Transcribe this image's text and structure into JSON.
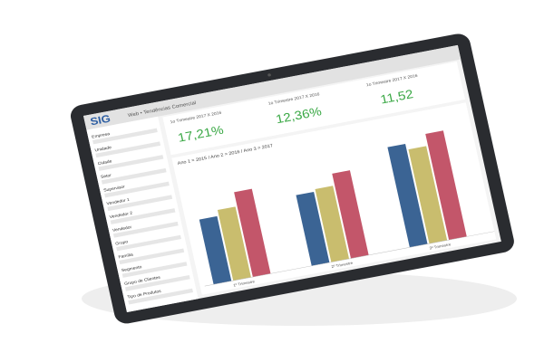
{
  "header": {
    "logo": "SIG",
    "title": "Web • Tendências Comercial"
  },
  "sidebar": {
    "filters": [
      "Empresa",
      "Unidade",
      "Cidade",
      "Setor",
      "Supervisor",
      "Vendedor 1",
      "Vendedor 2",
      "Vendedor",
      "Grupo",
      "Família",
      "Segmento",
      "Grupo de Clientes",
      "Tipo de Produtos"
    ]
  },
  "kpis": [
    {
      "title": "1o Trimestre 2017 X 2016",
      "value": "17,21%"
    },
    {
      "title": "1o Trimestre 2017 X 2016",
      "value": "12,36%"
    },
    {
      "title": "1o Trimestre 2017 X 2016",
      "value": "11,52"
    }
  ],
  "chart": {
    "subtitle": "Ano 1 = 2015 / Ano 2 = 2016 / Ano 3 = 2017",
    "categories": [
      "1º Trimestre",
      "2º Trimestre",
      "3º Trimestre"
    ],
    "series": [
      {
        "color": "#3b6494",
        "values": [
          55,
          60,
          85
        ]
      },
      {
        "color": "#c9bd6e",
        "values": [
          60,
          62,
          80
        ]
      },
      {
        "color": "#c3566a",
        "values": [
          72,
          72,
          90
        ]
      }
    ]
  }
}
